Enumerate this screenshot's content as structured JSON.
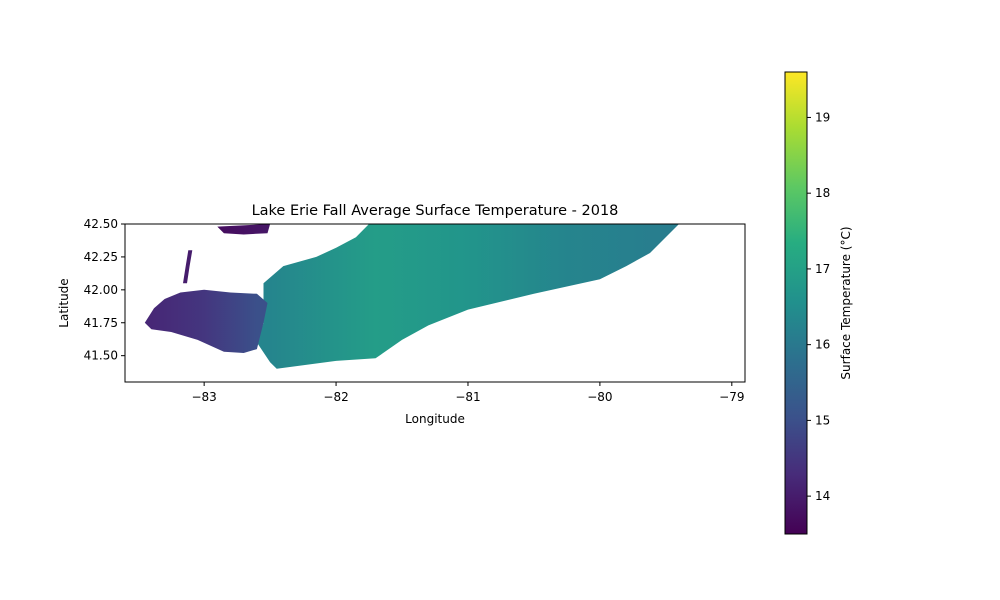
{
  "chart_data": {
    "type": "heatmap",
    "title": "Lake Erie Fall Average Surface Temperature - 2018",
    "xlabel": "Longitude",
    "ylabel": "Latitude",
    "xlim": [
      -83.6,
      -78.9
    ],
    "ylim": [
      41.3,
      42.5
    ],
    "x_ticks": [
      -83,
      -82,
      -81,
      -80,
      -79
    ],
    "y_ticks": [
      41.5,
      41.75,
      42.0,
      42.25,
      42.5
    ],
    "x_tick_labels": [
      "−83",
      "−82",
      "−81",
      "−80",
      "−79"
    ],
    "y_tick_labels": [
      "41.50",
      "41.75",
      "42.00",
      "42.25",
      "42.50"
    ],
    "grid": false,
    "colormap": "viridis",
    "colorbar": {
      "label": "Surface Temperature (°C)",
      "range": [
        13.5,
        19.6
      ],
      "ticks": [
        14,
        15,
        16,
        17,
        18,
        19
      ],
      "tick_labels": [
        "14",
        "15",
        "16",
        "17",
        "18",
        "19"
      ]
    },
    "regions": [
      {
        "description": "main lake body",
        "outline": [
          [
            -82.45,
            41.4
          ],
          [
            -82.0,
            41.46
          ],
          [
            -81.7,
            41.48
          ],
          [
            -81.5,
            41.62
          ],
          [
            -81.3,
            41.73
          ],
          [
            -81.0,
            41.85
          ],
          [
            -80.5,
            41.97
          ],
          [
            -80.0,
            42.08
          ],
          [
            -79.8,
            42.18
          ],
          [
            -79.62,
            42.28
          ],
          [
            -79.4,
            42.5
          ],
          [
            -81.75,
            42.5
          ],
          [
            -81.85,
            42.4
          ],
          [
            -82.0,
            42.32
          ],
          [
            -82.15,
            42.25
          ],
          [
            -82.4,
            42.18
          ],
          [
            -82.55,
            42.05
          ],
          [
            -82.55,
            41.75
          ],
          [
            -82.6,
            41.6
          ],
          [
            -82.5,
            41.45
          ]
        ],
        "stops": [
          {
            "x": -82.5,
            "value": 16.3
          },
          {
            "x": -81.7,
            "value": 16.9
          },
          {
            "x": -81.0,
            "value": 16.7
          },
          {
            "x": -80.3,
            "value": 16.3
          },
          {
            "x": -79.5,
            "value": 16.1
          }
        ]
      },
      {
        "description": "western basin",
        "outline": [
          [
            -83.45,
            41.75
          ],
          [
            -83.38,
            41.86
          ],
          [
            -83.3,
            41.93
          ],
          [
            -83.18,
            41.98
          ],
          [
            -83.0,
            42.0
          ],
          [
            -82.8,
            41.98
          ],
          [
            -82.6,
            41.97
          ],
          [
            -82.52,
            41.9
          ],
          [
            -82.55,
            41.75
          ],
          [
            -82.6,
            41.55
          ],
          [
            -82.7,
            41.52
          ],
          [
            -82.85,
            41.53
          ],
          [
            -83.05,
            41.62
          ],
          [
            -83.25,
            41.68
          ],
          [
            -83.4,
            41.7
          ]
        ],
        "stops": [
          {
            "x": -83.4,
            "value": 14.2
          },
          {
            "x": -83.0,
            "value": 14.5
          },
          {
            "x": -82.6,
            "value": 15.0
          }
        ]
      },
      {
        "description": "Lake St. Clair",
        "outline": [
          [
            -82.9,
            42.48
          ],
          [
            -82.85,
            42.43
          ],
          [
            -82.7,
            42.42
          ],
          [
            -82.52,
            42.43
          ],
          [
            -82.5,
            42.5
          ]
        ],
        "stops": [
          {
            "x": -82.9,
            "value": 13.7
          },
          {
            "x": -82.5,
            "value": 13.9
          }
        ]
      },
      {
        "description": "Detroit River",
        "outline": [
          [
            -83.12,
            42.3
          ],
          [
            -83.14,
            42.18
          ],
          [
            -83.16,
            42.05
          ],
          [
            -83.13,
            42.05
          ],
          [
            -83.11,
            42.18
          ],
          [
            -83.09,
            42.3
          ]
        ],
        "stops": [
          {
            "x": -83.1,
            "value": 14.0
          }
        ]
      }
    ]
  }
}
